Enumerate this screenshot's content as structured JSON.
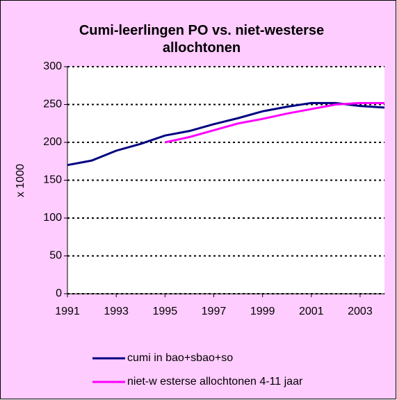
{
  "chart_data": {
    "type": "line",
    "title": "Cumi-leerlingen PO vs. niet-westerse allochtonen",
    "y_label": "x 1000",
    "x": [
      1991,
      1992,
      1993,
      1994,
      1995,
      1996,
      1997,
      1998,
      1999,
      2000,
      2001,
      2002,
      2003,
      2004
    ],
    "series": [
      {
        "name": "cumi in bao+sbao+so",
        "color": "#000080",
        "values": [
          170,
          176,
          189,
          198,
          209,
          215,
          224,
          232,
          241,
          247,
          252,
          252,
          248,
          246
        ]
      },
      {
        "name": "niet-w esterse allochtonen 4-11 jaar",
        "color": "#ff00ff",
        "values": [
          null,
          null,
          null,
          null,
          200,
          207,
          216,
          225,
          231,
          238,
          244,
          250,
          252,
          252
        ]
      }
    ],
    "xlim": [
      1991,
      2004
    ],
    "xticks": [
      1991,
      1993,
      1995,
      1997,
      1999,
      2001,
      2003
    ],
    "ylim": [
      0,
      300
    ],
    "yticks": [
      0,
      50,
      100,
      150,
      200,
      250,
      300
    ],
    "grid": true
  }
}
